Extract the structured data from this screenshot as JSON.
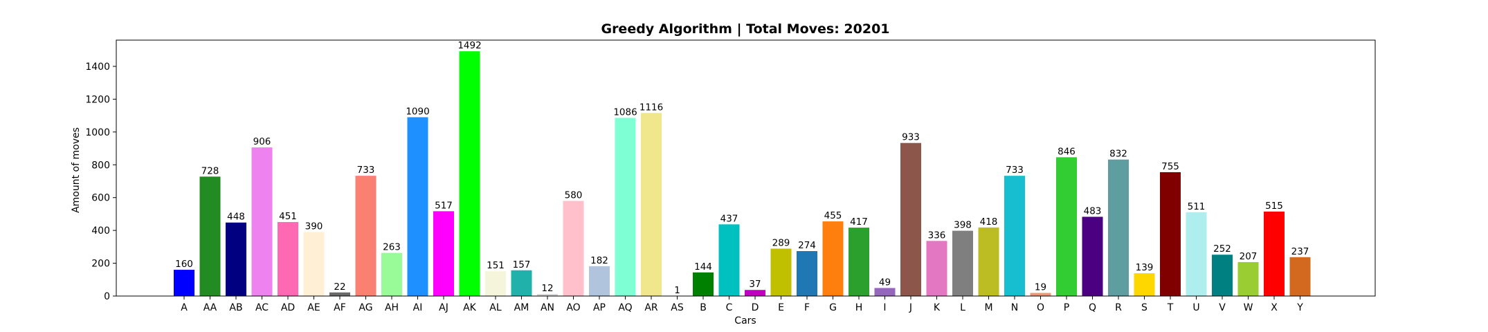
{
  "chart_data": {
    "type": "bar",
    "title": "Greedy Algorithm | Total Moves: 20201",
    "xlabel": "Cars",
    "ylabel": "Amount of moves",
    "ylim": [
      0,
      1560
    ],
    "yticks": [
      0,
      200,
      400,
      600,
      800,
      1000,
      1200,
      1400
    ],
    "grid": false,
    "categories": [
      "A",
      "AA",
      "AB",
      "AC",
      "AD",
      "AE",
      "AF",
      "AG",
      "AH",
      "AI",
      "AJ",
      "AK",
      "AL",
      "AM",
      "AN",
      "AO",
      "AP",
      "AQ",
      "AR",
      "AS",
      "B",
      "C",
      "D",
      "E",
      "F",
      "G",
      "H",
      "I",
      "J",
      "K",
      "L",
      "M",
      "N",
      "O",
      "P",
      "Q",
      "R",
      "S",
      "T",
      "U",
      "V",
      "W",
      "X",
      "Y"
    ],
    "values": [
      160,
      728,
      448,
      906,
      451,
      390,
      22,
      733,
      263,
      1090,
      517,
      1492,
      151,
      157,
      12,
      580,
      182,
      1086,
      1116,
      1,
      144,
      437,
      37,
      289,
      274,
      455,
      417,
      49,
      933,
      336,
      398,
      418,
      733,
      19,
      846,
      483,
      832,
      139,
      755,
      511,
      252,
      207,
      515,
      237
    ],
    "colors": [
      "#0000ff",
      "#228b22",
      "#000080",
      "#ee82ee",
      "#ff69b4",
      "#ffefd5",
      "#696969",
      "#fa8072",
      "#98fb98",
      "#1e90ff",
      "#ff00ff",
      "#00ff00",
      "#f5f5dc",
      "#20b2aa",
      "#d3d3d3",
      "#ffc0cb",
      "#b0c4de",
      "#7fffd4",
      "#f0e68c",
      "#d3d3d3",
      "#008000",
      "#00c0c0",
      "#c000c0",
      "#c0c000",
      "#1f77b4",
      "#ff7f0e",
      "#2ca02c",
      "#9467bd",
      "#8c564b",
      "#e377c2",
      "#7f7f7f",
      "#bcbd22",
      "#17becf",
      "#e9967a",
      "#32cd32",
      "#4b0082",
      "#5f9ea0",
      "#ffd700",
      "#800000",
      "#afeeee",
      "#008080",
      "#9acd32",
      "#ff0000",
      "#d2691e"
    ]
  }
}
